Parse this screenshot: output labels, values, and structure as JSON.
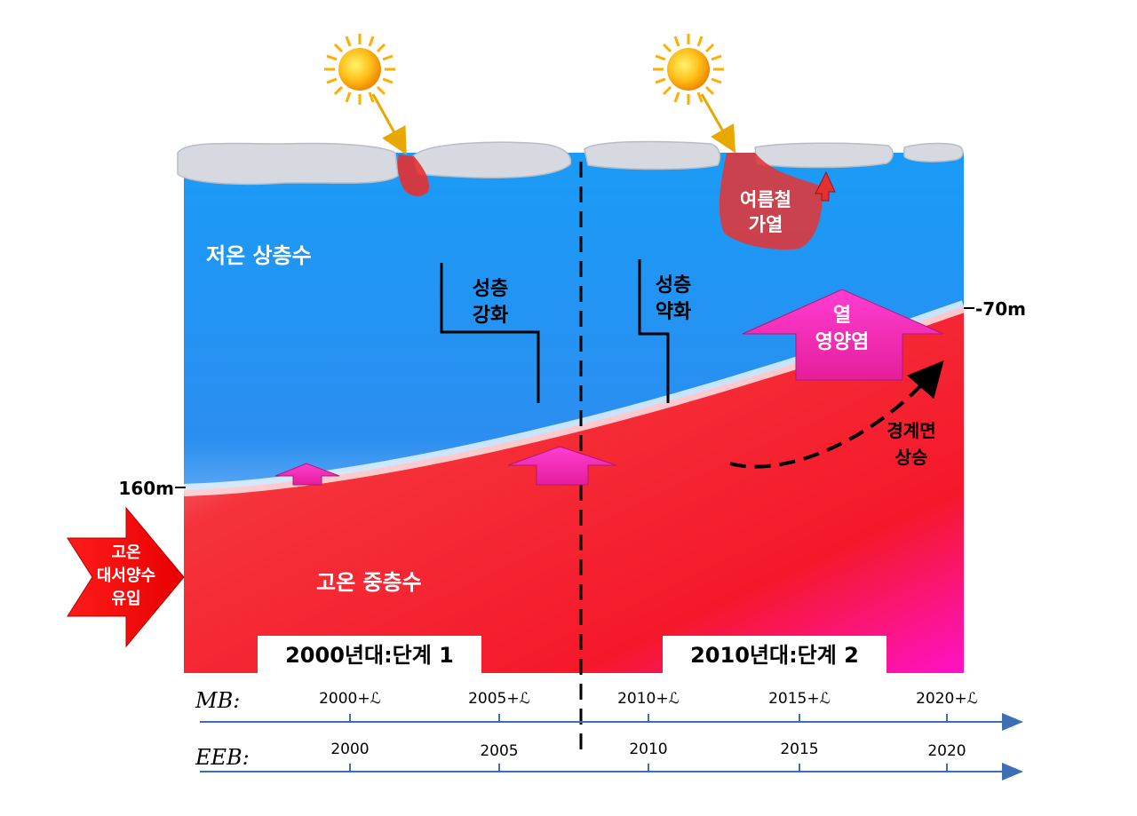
{
  "labels": {
    "upper_water": "저온 상층수",
    "middle_water": "고온 중층수",
    "strat_strong_1": "성층",
    "strat_strong_2": "강화",
    "strat_weak_1": "성층",
    "strat_weak_2": "약화",
    "summer_heat_1": "여름철",
    "summer_heat_2": "가열",
    "heat_flux_1": "열",
    "heat_flux_2": "영양염",
    "interface_rise_1": "경계면",
    "interface_rise_2": "상승",
    "inflow_1": "고온",
    "inflow_2": "대서양수",
    "inflow_3": "유입",
    "depth_top": "-70m",
    "depth_bottom": "160m",
    "stage_1": "2000년대:단계 1",
    "stage_2": "2010년대:단계 2"
  },
  "timelines": {
    "mb": {
      "label": "MB:",
      "ticks": [
        "2000+ℒ",
        "2005+ℒ",
        "2010+ℒ",
        "2015+ℒ",
        "2020+ℒ"
      ]
    },
    "eeb": {
      "label": "EEB:",
      "ticks": [
        "2000",
        "2005",
        "2010",
        "2015",
        "2020"
      ]
    }
  },
  "colors": {
    "cold_water": "#1e9af5",
    "warm_water": "#f5202a",
    "magenta": "#ff1aa8",
    "ice": "#d6d9e0",
    "sun": "#ffb300",
    "axis": "#3d6fb5"
  }
}
